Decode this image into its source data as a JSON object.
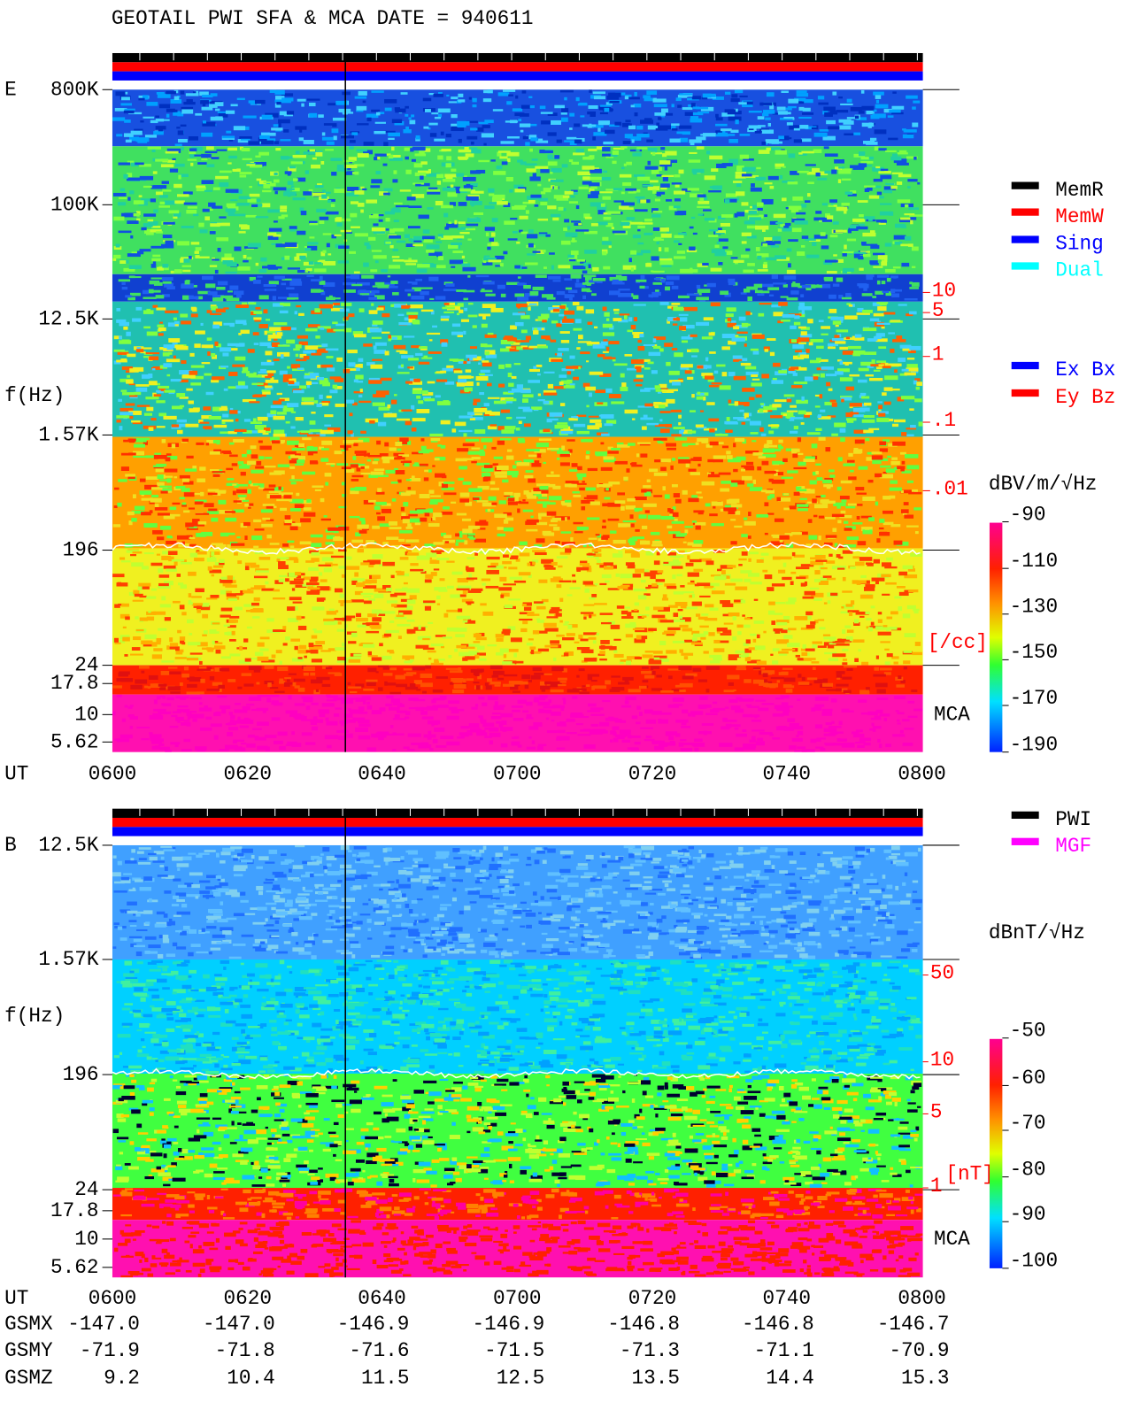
{
  "header": {
    "title": "GEOTAIL  PWI SFA & MCA   DATE = 940611"
  },
  "panel_e": {
    "label": "E",
    "ylabel": "f(Hz)",
    "yticks": [
      "800K",
      "100K",
      "12.5K",
      "1.57K",
      "196",
      "24",
      "17.8",
      "10",
      "5.62"
    ],
    "xlabel": "UT",
    "xticks": [
      "0600",
      "0620",
      "0640",
      "0700",
      "0720",
      "0740",
      "0800"
    ],
    "density_ticks": [
      "10",
      "5",
      "1",
      ".1",
      ".01"
    ],
    "density_unit": "[/cc]",
    "mca": "MCA",
    "legend": [
      "MemR",
      "MemW",
      "Sing",
      "Dual"
    ],
    "legend2": [
      "Ex Bx",
      "Ey Bz"
    ],
    "colorbar_unit": "dBV/m/√Hz",
    "colorbar_ticks": [
      "-90",
      "-110",
      "-130",
      "-150",
      "-170",
      "-190"
    ]
  },
  "panel_b": {
    "label": "B",
    "ylabel": "f(Hz)",
    "yticks": [
      "12.5K",
      "1.57K",
      "196",
      "24",
      "17.8",
      "10",
      "5.62"
    ],
    "field_ticks": [
      "50",
      "10",
      "5",
      "1"
    ],
    "field_unit": "[nT]",
    "mca": "MCA",
    "legend": [
      "PWI",
      "MGF"
    ],
    "colorbar_unit": "dBnT/√Hz",
    "colorbar_ticks": [
      "-50",
      "-60",
      "-70",
      "-80",
      "-90",
      "-100"
    ]
  },
  "orbit": {
    "xlabel": "UT",
    "xticks": [
      "0600",
      "0620",
      "0640",
      "0700",
      "0720",
      "0740",
      "0800"
    ],
    "rows": [
      {
        "name": "GSMX",
        "values": [
          "-147.0",
          "-147.0",
          "-146.9",
          "-146.9",
          "-146.8",
          "-146.8",
          "-146.7"
        ]
      },
      {
        "name": "GSMY",
        "values": [
          "-71.9",
          "-71.8",
          "-71.6",
          "-71.5",
          "-71.3",
          "-71.1",
          "-70.9"
        ]
      },
      {
        "name": "GSMZ",
        "values": [
          "9.2",
          "10.4",
          "11.5",
          "12.5",
          "13.5",
          "14.4",
          "15.3"
        ]
      }
    ]
  }
}
